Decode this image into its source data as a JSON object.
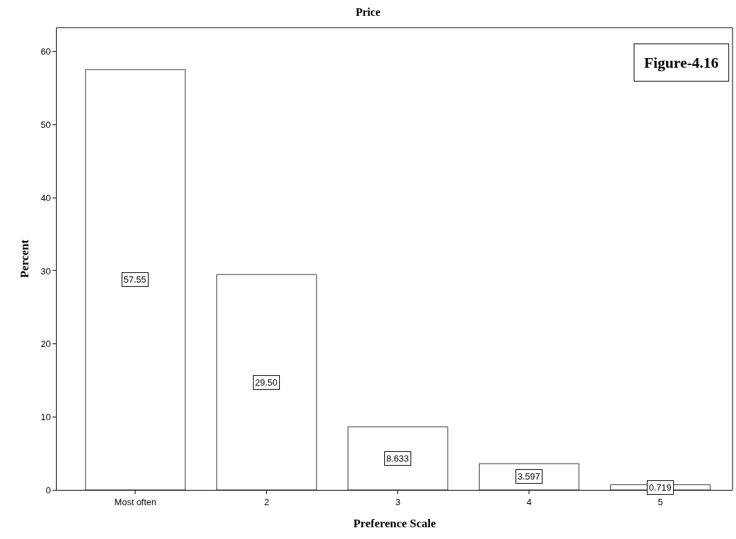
{
  "chart_data": {
    "type": "bar",
    "title": "Price",
    "xlabel": "Preference Scale",
    "ylabel": "Percent",
    "categories": [
      "Most often",
      "2",
      "3",
      "4",
      "5"
    ],
    "values": [
      57.55,
      29.5,
      8.633,
      3.597,
      0.719
    ],
    "value_labels": [
      "57.55",
      "29.50",
      "8.633",
      "3.597",
      "0.719"
    ],
    "color": "#ffffff",
    "ylim": [
      0,
      63.3
    ],
    "yticks": [
      0,
      10,
      20,
      30,
      40,
      50,
      60
    ],
    "grid": false,
    "legend": false,
    "annotations": [
      "Figure-4.16"
    ]
  }
}
